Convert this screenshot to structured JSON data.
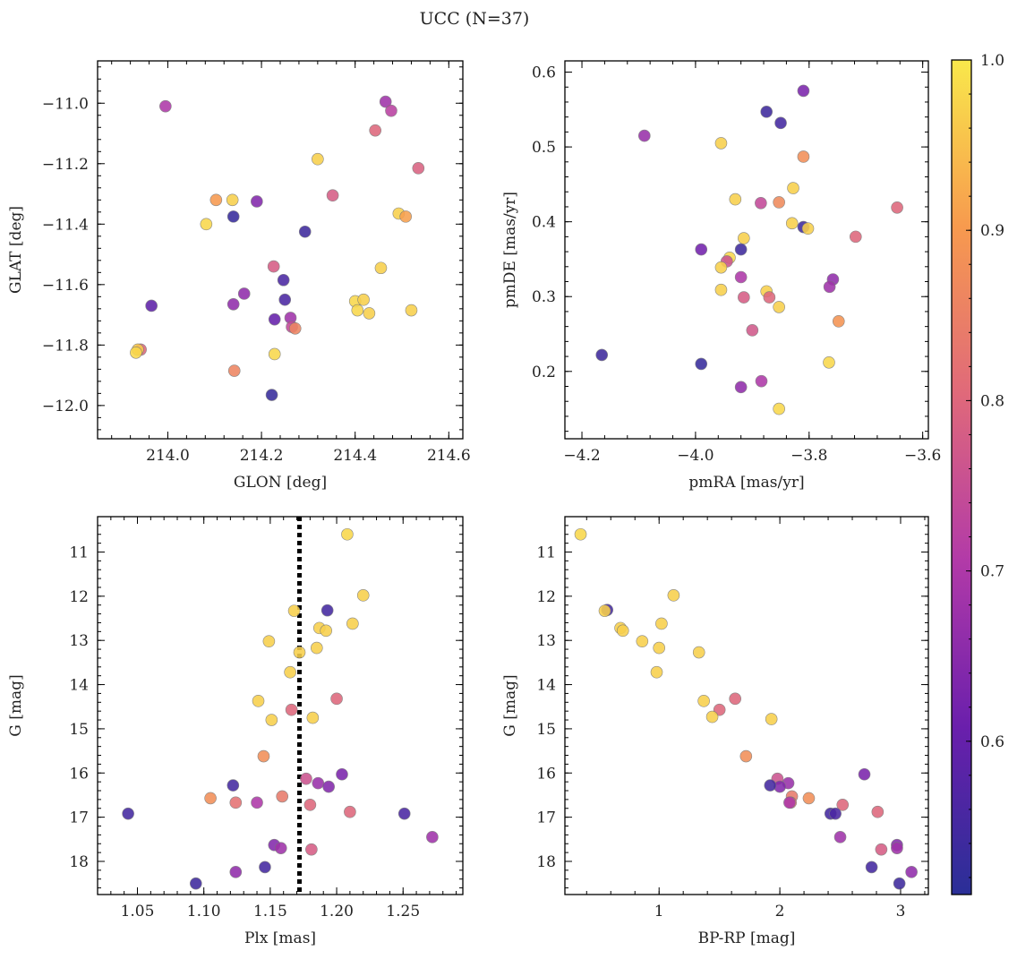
{
  "figure": {
    "title": "UCC (N=37)"
  },
  "colorbar": {
    "range": [
      0.51,
      1.0
    ],
    "ticks": [
      0.6,
      0.7,
      0.8,
      0.9,
      1.0
    ],
    "tick_labels": [
      "0.6",
      "0.7",
      "0.8",
      "0.9",
      "1.0"
    ],
    "colormap": "plasma",
    "colors": [
      "#2a2f97",
      "#6a1fac",
      "#b23aa8",
      "#e0697a",
      "#f79a4e",
      "#f9e84b"
    ]
  },
  "chart_data": [
    {
      "type": "scatter",
      "id": "glon-glat",
      "xlabel": "GLON [deg]",
      "ylabel": "GLAT [deg]",
      "xlim": [
        213.85,
        214.63
      ],
      "ylim": [
        -12.11,
        -10.86
      ],
      "y_inverted": false,
      "xticks": [
        214.0,
        214.2,
        214.4,
        214.6
      ],
      "xtick_labels": [
        "214.0",
        "214.2",
        "214.4",
        "214.6"
      ],
      "yticks": [
        -12.0,
        -11.8,
        -11.6,
        -11.4,
        -11.2,
        -11.0
      ],
      "ytick_labels": [
        "−12.0",
        "−11.8",
        "−11.6",
        "−11.4",
        "−11.2",
        "−11.0"
      ],
      "points": [
        {
          "x": 214.465,
          "y": -10.995,
          "c": 0.68
        },
        {
          "x": 214.477,
          "y": -11.025,
          "c": 0.72
        },
        {
          "x": 213.995,
          "y": -11.01,
          "c": 0.7
        },
        {
          "x": 214.443,
          "y": -11.09,
          "c": 0.8
        },
        {
          "x": 214.535,
          "y": -11.215,
          "c": 0.79
        },
        {
          "x": 214.32,
          "y": -11.185,
          "c": 0.97
        },
        {
          "x": 214.103,
          "y": -11.32,
          "c": 0.9
        },
        {
          "x": 214.138,
          "y": -11.32,
          "c": 0.97
        },
        {
          "x": 214.19,
          "y": -11.325,
          "c": 0.64
        },
        {
          "x": 214.352,
          "y": -11.305,
          "c": 0.78
        },
        {
          "x": 214.14,
          "y": -11.375,
          "c": 0.53
        },
        {
          "x": 214.082,
          "y": -11.4,
          "c": 0.98
        },
        {
          "x": 214.293,
          "y": -11.425,
          "c": 0.54
        },
        {
          "x": 214.493,
          "y": -11.365,
          "c": 0.97
        },
        {
          "x": 214.508,
          "y": -11.375,
          "c": 0.91
        },
        {
          "x": 214.226,
          "y": -11.54,
          "c": 0.78
        },
        {
          "x": 214.455,
          "y": -11.545,
          "c": 0.97
        },
        {
          "x": 214.247,
          "y": -11.585,
          "c": 0.56
        },
        {
          "x": 214.163,
          "y": -11.63,
          "c": 0.66
        },
        {
          "x": 214.25,
          "y": -11.65,
          "c": 0.56
        },
        {
          "x": 213.965,
          "y": -11.67,
          "c": 0.59
        },
        {
          "x": 214.14,
          "y": -11.665,
          "c": 0.66
        },
        {
          "x": 214.4,
          "y": -11.655,
          "c": 0.98
        },
        {
          "x": 214.418,
          "y": -11.65,
          "c": 0.97
        },
        {
          "x": 214.405,
          "y": -11.685,
          "c": 0.98
        },
        {
          "x": 214.43,
          "y": -11.695,
          "c": 0.97
        },
        {
          "x": 214.52,
          "y": -11.685,
          "c": 0.97
        },
        {
          "x": 214.228,
          "y": -11.715,
          "c": 0.6
        },
        {
          "x": 214.262,
          "y": -11.71,
          "c": 0.68
        },
        {
          "x": 214.265,
          "y": -11.74,
          "c": 0.74
        },
        {
          "x": 214.272,
          "y": -11.745,
          "c": 0.86
        },
        {
          "x": 213.942,
          "y": -11.815,
          "c": 0.8
        },
        {
          "x": 213.936,
          "y": -11.815,
          "c": 0.96
        },
        {
          "x": 213.932,
          "y": -11.825,
          "c": 0.98
        },
        {
          "x": 214.228,
          "y": -11.83,
          "c": 0.98
        },
        {
          "x": 214.142,
          "y": -11.885,
          "c": 0.86
        },
        {
          "x": 214.222,
          "y": -11.965,
          "c": 0.53
        }
      ]
    },
    {
      "type": "scatter",
      "id": "pmra-pmde",
      "xlabel": "pmRA [mas/yr]",
      "ylabel": "pmDE [mas/yr]",
      "xlim": [
        -4.23,
        -3.59
      ],
      "ylim": [
        0.11,
        0.615
      ],
      "y_inverted": false,
      "xticks": [
        -4.2,
        -4.0,
        -3.8,
        -3.6
      ],
      "xtick_labels": [
        "−4.2",
        "−4.0",
        "−3.8",
        "−3.6"
      ],
      "yticks": [
        0.2,
        0.3,
        0.4,
        0.5,
        0.6
      ],
      "ytick_labels": [
        "0.2",
        "0.3",
        "0.4",
        "0.5",
        "0.6"
      ],
      "points": [
        {
          "x": -3.81,
          "y": 0.575,
          "c": 0.63
        },
        {
          "x": -3.875,
          "y": 0.547,
          "c": 0.54
        },
        {
          "x": -3.85,
          "y": 0.532,
          "c": 0.55
        },
        {
          "x": -4.09,
          "y": 0.515,
          "c": 0.67
        },
        {
          "x": -3.955,
          "y": 0.505,
          "c": 0.97
        },
        {
          "x": -3.81,
          "y": 0.487,
          "c": 0.88
        },
        {
          "x": -3.828,
          "y": 0.445,
          "c": 0.97
        },
        {
          "x": -3.93,
          "y": 0.43,
          "c": 0.97
        },
        {
          "x": -3.885,
          "y": 0.425,
          "c": 0.74
        },
        {
          "x": -3.853,
          "y": 0.426,
          "c": 0.87
        },
        {
          "x": -3.645,
          "y": 0.419,
          "c": 0.8
        },
        {
          "x": -3.83,
          "y": 0.398,
          "c": 0.97
        },
        {
          "x": -3.81,
          "y": 0.393,
          "c": 0.54
        },
        {
          "x": -3.802,
          "y": 0.391,
          "c": 0.97
        },
        {
          "x": -3.718,
          "y": 0.38,
          "c": 0.8
        },
        {
          "x": -3.915,
          "y": 0.378,
          "c": 0.97
        },
        {
          "x": -3.99,
          "y": 0.363,
          "c": 0.62
        },
        {
          "x": -3.92,
          "y": 0.363,
          "c": 0.54
        },
        {
          "x": -3.94,
          "y": 0.352,
          "c": 0.98
        },
        {
          "x": -3.945,
          "y": 0.347,
          "c": 0.76
        },
        {
          "x": -3.955,
          "y": 0.339,
          "c": 0.97
        },
        {
          "x": -3.92,
          "y": 0.326,
          "c": 0.7
        },
        {
          "x": -3.758,
          "y": 0.323,
          "c": 0.66
        },
        {
          "x": -3.764,
          "y": 0.313,
          "c": 0.68
        },
        {
          "x": -3.955,
          "y": 0.309,
          "c": 0.97
        },
        {
          "x": -3.875,
          "y": 0.307,
          "c": 0.97
        },
        {
          "x": -3.915,
          "y": 0.299,
          "c": 0.78
        },
        {
          "x": -3.87,
          "y": 0.299,
          "c": 0.8
        },
        {
          "x": -3.853,
          "y": 0.286,
          "c": 0.97
        },
        {
          "x": -3.748,
          "y": 0.267,
          "c": 0.89
        },
        {
          "x": -3.9,
          "y": 0.255,
          "c": 0.77
        },
        {
          "x": -4.165,
          "y": 0.222,
          "c": 0.54
        },
        {
          "x": -3.765,
          "y": 0.212,
          "c": 0.98
        },
        {
          "x": -3.99,
          "y": 0.21,
          "c": 0.53
        },
        {
          "x": -3.884,
          "y": 0.187,
          "c": 0.7
        },
        {
          "x": -3.92,
          "y": 0.179,
          "c": 0.66
        },
        {
          "x": -3.853,
          "y": 0.15,
          "c": 0.98
        }
      ]
    },
    {
      "type": "scatter",
      "id": "plx-g",
      "xlabel": "Plx [mas]",
      "ylabel": "G [mag]",
      "xlim": [
        1.02,
        1.295
      ],
      "ylim": [
        10.2,
        18.75
      ],
      "y_inverted": true,
      "vline": 1.172,
      "xticks": [
        1.05,
        1.1,
        1.15,
        1.2,
        1.25
      ],
      "xtick_labels": [
        "1.05",
        "1.10",
        "1.15",
        "1.20",
        "1.25"
      ],
      "yticks": [
        11,
        12,
        13,
        14,
        15,
        16,
        17,
        18
      ],
      "ytick_labels": [
        "11",
        "12",
        "13",
        "14",
        "15",
        "16",
        "17",
        "18"
      ],
      "points": [
        {
          "x": 1.208,
          "y": 10.6,
          "c": 0.98
        },
        {
          "x": 1.22,
          "y": 11.98,
          "c": 0.97
        },
        {
          "x": 1.168,
          "y": 12.33,
          "c": 0.97
        },
        {
          "x": 1.193,
          "y": 12.32,
          "c": 0.55
        },
        {
          "x": 1.212,
          "y": 12.62,
          "c": 0.97
        },
        {
          "x": 1.187,
          "y": 12.72,
          "c": 0.97
        },
        {
          "x": 1.192,
          "y": 12.78,
          "c": 0.97
        },
        {
          "x": 1.149,
          "y": 13.02,
          "c": 0.97
        },
        {
          "x": 1.172,
          "y": 13.27,
          "c": 0.97
        },
        {
          "x": 1.185,
          "y": 13.17,
          "c": 0.97
        },
        {
          "x": 1.165,
          "y": 13.72,
          "c": 0.97
        },
        {
          "x": 1.141,
          "y": 14.37,
          "c": 0.97
        },
        {
          "x": 1.2,
          "y": 14.32,
          "c": 0.8
        },
        {
          "x": 1.166,
          "y": 14.57,
          "c": 0.8
        },
        {
          "x": 1.151,
          "y": 14.8,
          "c": 0.97
        },
        {
          "x": 1.182,
          "y": 14.75,
          "c": 0.97
        },
        {
          "x": 1.145,
          "y": 15.62,
          "c": 0.88
        },
        {
          "x": 1.204,
          "y": 16.03,
          "c": 0.63
        },
        {
          "x": 1.177,
          "y": 16.13,
          "c": 0.76
        },
        {
          "x": 1.186,
          "y": 16.23,
          "c": 0.67
        },
        {
          "x": 1.194,
          "y": 16.31,
          "c": 0.64
        },
        {
          "x": 1.122,
          "y": 16.28,
          "c": 0.55
        },
        {
          "x": 1.105,
          "y": 16.57,
          "c": 0.88
        },
        {
          "x": 1.159,
          "y": 16.53,
          "c": 0.84
        },
        {
          "x": 1.124,
          "y": 16.67,
          "c": 0.82
        },
        {
          "x": 1.14,
          "y": 16.67,
          "c": 0.7
        },
        {
          "x": 1.18,
          "y": 16.72,
          "c": 0.8
        },
        {
          "x": 1.21,
          "y": 16.88,
          "c": 0.8
        },
        {
          "x": 1.043,
          "y": 16.92,
          "c": 0.55
        },
        {
          "x": 1.251,
          "y": 16.92,
          "c": 0.56
        },
        {
          "x": 1.272,
          "y": 17.45,
          "c": 0.68
        },
        {
          "x": 1.153,
          "y": 17.63,
          "c": 0.64
        },
        {
          "x": 1.158,
          "y": 17.7,
          "c": 0.68
        },
        {
          "x": 1.181,
          "y": 17.73,
          "c": 0.78
        },
        {
          "x": 1.146,
          "y": 18.13,
          "c": 0.55
        },
        {
          "x": 1.124,
          "y": 18.24,
          "c": 0.66
        },
        {
          "x": 1.094,
          "y": 18.5,
          "c": 0.54
        }
      ]
    },
    {
      "type": "scatter",
      "id": "bprp-g",
      "xlabel": "BP-RP [mag]",
      "ylabel": "G [mag]",
      "xlim": [
        0.22,
        3.23
      ],
      "ylim": [
        10.2,
        18.75
      ],
      "y_inverted": true,
      "xticks": [
        1,
        2,
        3
      ],
      "xtick_labels": [
        "1",
        "2",
        "3"
      ],
      "yticks": [
        11,
        12,
        13,
        14,
        15,
        16,
        17,
        18
      ],
      "ytick_labels": [
        "11",
        "12",
        "13",
        "14",
        "15",
        "16",
        "17",
        "18"
      ],
      "points": [
        {
          "x": 0.35,
          "y": 10.6,
          "c": 0.98
        },
        {
          "x": 1.12,
          "y": 11.98,
          "c": 0.97
        },
        {
          "x": 0.57,
          "y": 12.31,
          "c": 0.55
        },
        {
          "x": 0.55,
          "y": 12.33,
          "c": 0.97
        },
        {
          "x": 1.02,
          "y": 12.62,
          "c": 0.97
        },
        {
          "x": 0.68,
          "y": 12.72,
          "c": 0.97
        },
        {
          "x": 0.7,
          "y": 12.78,
          "c": 0.97
        },
        {
          "x": 0.86,
          "y": 13.02,
          "c": 0.97
        },
        {
          "x": 1.0,
          "y": 13.17,
          "c": 0.97
        },
        {
          "x": 1.33,
          "y": 13.27,
          "c": 0.97
        },
        {
          "x": 0.98,
          "y": 13.72,
          "c": 0.97
        },
        {
          "x": 1.37,
          "y": 14.37,
          "c": 0.97
        },
        {
          "x": 1.63,
          "y": 14.32,
          "c": 0.8
        },
        {
          "x": 1.5,
          "y": 14.57,
          "c": 0.8
        },
        {
          "x": 1.44,
          "y": 14.73,
          "c": 0.97
        },
        {
          "x": 1.93,
          "y": 14.78,
          "c": 0.97
        },
        {
          "x": 1.72,
          "y": 15.62,
          "c": 0.88
        },
        {
          "x": 2.7,
          "y": 16.03,
          "c": 0.63
        },
        {
          "x": 1.98,
          "y": 16.13,
          "c": 0.76
        },
        {
          "x": 2.07,
          "y": 16.23,
          "c": 0.67
        },
        {
          "x": 2.0,
          "y": 16.31,
          "c": 0.64
        },
        {
          "x": 1.92,
          "y": 16.28,
          "c": 0.55
        },
        {
          "x": 2.24,
          "y": 16.57,
          "c": 0.88
        },
        {
          "x": 2.1,
          "y": 16.53,
          "c": 0.84
        },
        {
          "x": 2.09,
          "y": 16.67,
          "c": 0.82
        },
        {
          "x": 2.08,
          "y": 16.67,
          "c": 0.7
        },
        {
          "x": 2.52,
          "y": 16.72,
          "c": 0.8
        },
        {
          "x": 2.81,
          "y": 16.88,
          "c": 0.8
        },
        {
          "x": 2.42,
          "y": 16.92,
          "c": 0.55
        },
        {
          "x": 2.46,
          "y": 16.92,
          "c": 0.56
        },
        {
          "x": 2.5,
          "y": 17.45,
          "c": 0.68
        },
        {
          "x": 2.97,
          "y": 17.63,
          "c": 0.64
        },
        {
          "x": 2.97,
          "y": 17.7,
          "c": 0.68
        },
        {
          "x": 2.84,
          "y": 17.73,
          "c": 0.78
        },
        {
          "x": 2.76,
          "y": 18.13,
          "c": 0.55
        },
        {
          "x": 3.09,
          "y": 18.24,
          "c": 0.66
        },
        {
          "x": 2.99,
          "y": 18.5,
          "c": 0.54
        }
      ]
    }
  ]
}
